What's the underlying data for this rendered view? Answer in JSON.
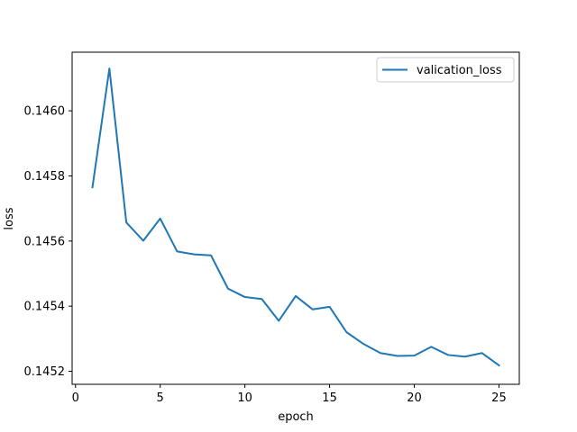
{
  "chart_data": {
    "type": "line",
    "xlabel": "epoch",
    "ylabel": "loss",
    "xlim": [
      -0.2,
      26.2
    ],
    "ylim": [
      0.14516,
      0.14618
    ],
    "xticks": [
      0,
      5,
      10,
      15,
      20,
      25
    ],
    "yticks": [
      0.1452,
      0.1454,
      0.1456,
      0.1458,
      0.146
    ],
    "xtick_labels": [
      "0",
      "5",
      "10",
      "15",
      "20",
      "25"
    ],
    "ytick_labels": [
      "0.1452",
      "0.1454",
      "0.1456",
      "0.1458",
      "0.1460"
    ],
    "grid": false,
    "legend_position": "upper-right",
    "series": [
      {
        "name": "valication_loss",
        "color": "#1f77b4",
        "x": [
          1,
          2,
          3,
          4,
          5,
          6,
          7,
          8,
          9,
          10,
          11,
          12,
          13,
          14,
          15,
          16,
          17,
          18,
          19,
          20,
          21,
          22,
          23,
          24,
          25
        ],
        "y": [
          0.145765,
          0.14613,
          0.145657,
          0.145601,
          0.145669,
          0.145568,
          0.145559,
          0.145556,
          0.145454,
          0.145428,
          0.145422,
          0.145355,
          0.145431,
          0.14539,
          0.145398,
          0.14532,
          0.145284,
          0.145256,
          0.145247,
          0.145248,
          0.145275,
          0.14525,
          0.145245,
          0.145256,
          0.145218
        ]
      }
    ]
  }
}
